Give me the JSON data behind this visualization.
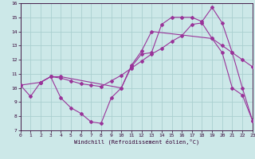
{
  "xlabel": "Windchill (Refroidissement éolien,°C)",
  "xlim": [
    0,
    23
  ],
  "ylim": [
    7,
    16
  ],
  "xticks": [
    0,
    1,
    2,
    3,
    4,
    5,
    6,
    7,
    8,
    9,
    10,
    11,
    12,
    13,
    14,
    15,
    16,
    17,
    18,
    19,
    20,
    21,
    22,
    23
  ],
  "yticks": [
    7,
    8,
    9,
    10,
    11,
    12,
    13,
    14,
    15,
    16
  ],
  "bg_color": "#cce8e8",
  "grid_color": "#aad0d0",
  "line_color": "#993399",
  "series": [
    {
      "x": [
        0,
        1,
        2,
        3,
        4,
        5,
        6,
        7,
        8,
        9,
        10,
        11,
        12,
        13,
        19,
        20,
        21,
        22,
        23
      ],
      "y": [
        10.2,
        9.4,
        10.4,
        10.8,
        9.3,
        8.6,
        8.2,
        7.6,
        7.5,
        9.3,
        10.0,
        11.6,
        12.6,
        14.0,
        13.5,
        12.5,
        10.0,
        9.5,
        7.7
      ]
    },
    {
      "x": [
        2,
        3,
        4,
        10,
        11,
        12,
        13,
        14,
        15,
        16,
        17,
        18,
        19,
        20,
        21,
        22,
        23
      ],
      "y": [
        10.4,
        10.8,
        10.8,
        10.0,
        11.5,
        12.4,
        12.5,
        14.5,
        15.0,
        15.0,
        15.0,
        14.7,
        15.7,
        14.6,
        12.5,
        10.0,
        7.7
      ]
    },
    {
      "x": [
        0,
        2,
        3,
        4,
        5,
        6,
        7,
        8,
        9,
        10,
        11,
        12,
        13,
        14,
        15,
        16,
        17,
        18,
        19,
        20,
        21,
        22,
        23
      ],
      "y": [
        10.2,
        10.4,
        10.8,
        10.7,
        10.5,
        10.3,
        10.2,
        10.1,
        10.5,
        10.9,
        11.4,
        11.9,
        12.4,
        12.8,
        13.3,
        13.7,
        14.5,
        14.6,
        13.5,
        13.0,
        12.5,
        12.0,
        11.5
      ]
    }
  ]
}
